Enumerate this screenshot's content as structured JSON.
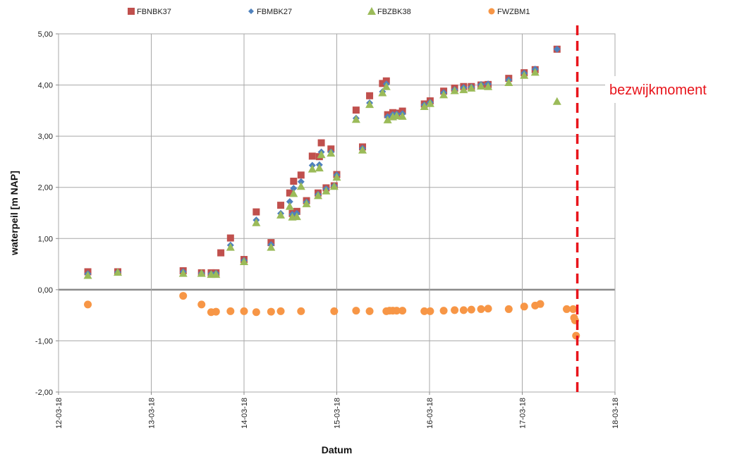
{
  "chart_data": {
    "type": "scatter",
    "xlabel": "Datum",
    "ylabel": "waterpeil [m NAP]",
    "xlim": [
      "12-03-18",
      "18-03-18"
    ],
    "ylim": [
      -2.0,
      5.0
    ],
    "x_ticks": [
      "12-03-18",
      "13-03-18",
      "14-03-18",
      "15-03-18",
      "16-03-18",
      "17-03-18",
      "18-03-18"
    ],
    "y_ticks": [
      "5,00",
      "4,00",
      "3,00",
      "2,00",
      "1,00",
      "0,00",
      "-1,00",
      "-2,00"
    ],
    "grid": true,
    "legend_position": "top",
    "colors": {
      "FBNBK37": "#c0504d",
      "FBMBK27": "#4f81bd",
      "FBZBK38": "#9bbb59",
      "FWZBM1": "#f79646",
      "annotation": "#e8141b"
    },
    "annotation": {
      "text": "bezwijkmoment",
      "x": "17-03-18 14:15"
    },
    "series": [
      {
        "name": "FBNBK37",
        "marker": "square",
        "points": [
          [
            "12-03-18 07:35",
            0.35
          ],
          [
            "12-03-18 15:20",
            0.35
          ],
          [
            "13-03-18 08:15",
            0.37
          ],
          [
            "13-03-18 13:00",
            0.33
          ],
          [
            "13-03-18 15:30",
            0.33
          ],
          [
            "13-03-18 16:45",
            0.33
          ],
          [
            "13-03-18 18:00",
            0.72
          ],
          [
            "13-03-18 20:30",
            1.01
          ],
          [
            "13-03-18 24:00",
            0.59
          ],
          [
            "14-03-18 03:10",
            1.52
          ],
          [
            "14-03-18 07:00",
            0.92
          ],
          [
            "14-03-18 09:30",
            1.65
          ],
          [
            "14-03-18 11:50",
            1.89
          ],
          [
            "14-03-18 12:30",
            1.49
          ],
          [
            "14-03-18 12:50",
            2.12
          ],
          [
            "14-03-18 13:40",
            1.53
          ],
          [
            "14-03-18 14:45",
            2.24
          ],
          [
            "14-03-18 16:10",
            1.74
          ],
          [
            "14-03-18 17:40",
            2.61
          ],
          [
            "14-03-18 19:10",
            1.89
          ],
          [
            "14-03-18 19:30",
            2.6
          ],
          [
            "14-03-18 20:00",
            2.87
          ],
          [
            "14-03-18 21:15",
            1.99
          ],
          [
            "14-03-18 22:30",
            2.75
          ],
          [
            "14-03-18 23:20",
            2.03
          ],
          [
            "15-03-18 00:00",
            2.25
          ],
          [
            "15-03-18 05:00",
            3.51
          ],
          [
            "15-03-18 06:40",
            2.79
          ],
          [
            "15-03-18 08:30",
            3.79
          ],
          [
            "15-03-18 11:50",
            4.03
          ],
          [
            "15-03-18 12:50",
            4.08
          ],
          [
            "15-03-18 13:10",
            3.42
          ],
          [
            "15-03-18 14:30",
            3.46
          ],
          [
            "15-03-18 15:30",
            3.45
          ],
          [
            "15-03-18 17:00",
            3.49
          ],
          [
            "15-03-18 22:40",
            3.63
          ],
          [
            "16-03-18 00:10",
            3.69
          ],
          [
            "16-03-18 03:40",
            3.88
          ],
          [
            "16-03-18 06:30",
            3.94
          ],
          [
            "16-03-18 08:50",
            3.97
          ],
          [
            "16-03-18 10:50",
            3.97
          ],
          [
            "16-03-18 13:20",
            4.0
          ],
          [
            "16-03-18 15:10",
            4.01
          ],
          [
            "16-03-18 20:30",
            4.13
          ],
          [
            "17-03-18 00:30",
            4.24
          ],
          [
            "17-03-18 03:20",
            4.3
          ],
          [
            "17-03-18 09:00",
            4.7
          ]
        ]
      },
      {
        "name": "FBMBK27",
        "marker": "diamond",
        "points": [
          [
            "12-03-18 07:35",
            0.31
          ],
          [
            "12-03-18 15:20",
            0.34
          ],
          [
            "13-03-18 08:15",
            0.35
          ],
          [
            "13-03-18 13:00",
            0.32
          ],
          [
            "13-03-18 15:30",
            0.31
          ],
          [
            "13-03-18 16:45",
            0.32
          ],
          [
            "13-03-18 20:30",
            0.87
          ],
          [
            "13-03-18 24:00",
            0.57
          ],
          [
            "14-03-18 03:10",
            1.36
          ],
          [
            "14-03-18 07:00",
            0.88
          ],
          [
            "14-03-18 09:30",
            1.49
          ],
          [
            "14-03-18 11:50",
            1.72
          ],
          [
            "14-03-18 12:30",
            1.47
          ],
          [
            "14-03-18 12:50",
            1.98
          ],
          [
            "14-03-18 13:40",
            1.49
          ],
          [
            "14-03-18 14:45",
            2.11
          ],
          [
            "14-03-18 16:10",
            1.71
          ],
          [
            "14-03-18 17:40",
            2.43
          ],
          [
            "14-03-18 19:10",
            1.86
          ],
          [
            "14-03-18 19:30",
            2.44
          ],
          [
            "14-03-18 20:00",
            2.69
          ],
          [
            "14-03-18 21:15",
            1.97
          ],
          [
            "14-03-18 22:30",
            2.69
          ],
          [
            "14-03-18 23:20",
            2.03
          ],
          [
            "15-03-18 00:00",
            2.24
          ],
          [
            "15-03-18 05:00",
            3.35
          ],
          [
            "15-03-18 06:40",
            2.76
          ],
          [
            "15-03-18 08:30",
            3.65
          ],
          [
            "15-03-18 11:50",
            3.87
          ],
          [
            "15-03-18 12:50",
            4.02
          ],
          [
            "15-03-18 13:10",
            3.38
          ],
          [
            "15-03-18 14:30",
            3.42
          ],
          [
            "15-03-18 15:30",
            3.43
          ],
          [
            "15-03-18 17:00",
            3.44
          ],
          [
            "15-03-18 22:40",
            3.61
          ],
          [
            "16-03-18 00:10",
            3.66
          ],
          [
            "16-03-18 03:40",
            3.85
          ],
          [
            "16-03-18 06:30",
            3.91
          ],
          [
            "16-03-18 08:50",
            3.95
          ],
          [
            "16-03-18 10:50",
            3.96
          ],
          [
            "16-03-18 13:20",
            4.01
          ],
          [
            "16-03-18 15:10",
            4.02
          ],
          [
            "16-03-18 20:30",
            4.1
          ],
          [
            "17-03-18 00:30",
            4.23
          ],
          [
            "17-03-18 03:20",
            4.31
          ],
          [
            "17-03-18 09:00",
            4.7
          ]
        ]
      },
      {
        "name": "FBZBK38",
        "marker": "triangle",
        "points": [
          [
            "12-03-18 07:35",
            0.28
          ],
          [
            "12-03-18 15:20",
            0.34
          ],
          [
            "13-03-18 08:15",
            0.32
          ],
          [
            "13-03-18 13:00",
            0.32
          ],
          [
            "13-03-18 15:30",
            0.3
          ],
          [
            "13-03-18 16:45",
            0.3
          ],
          [
            "13-03-18 20:30",
            0.83
          ],
          [
            "13-03-18 24:00",
            0.55
          ],
          [
            "14-03-18 03:10",
            1.31
          ],
          [
            "14-03-18 07:00",
            0.83
          ],
          [
            "14-03-18 09:30",
            1.46
          ],
          [
            "14-03-18 11:50",
            1.63
          ],
          [
            "14-03-18 12:30",
            1.42
          ],
          [
            "14-03-18 12:50",
            1.88
          ],
          [
            "14-03-18 13:40",
            1.43
          ],
          [
            "14-03-18 14:45",
            2.02
          ],
          [
            "14-03-18 16:10",
            1.68
          ],
          [
            "14-03-18 17:40",
            2.36
          ],
          [
            "14-03-18 19:10",
            1.84
          ],
          [
            "14-03-18 19:30",
            2.38
          ],
          [
            "14-03-18 20:00",
            2.64
          ],
          [
            "14-03-18 21:15",
            1.93
          ],
          [
            "14-03-18 22:30",
            2.67
          ],
          [
            "14-03-18 23:20",
            2.02
          ],
          [
            "15-03-18 00:00",
            2.2
          ],
          [
            "15-03-18 05:00",
            3.33
          ],
          [
            "15-03-18 06:40",
            2.73
          ],
          [
            "15-03-18 08:30",
            3.62
          ],
          [
            "15-03-18 11:50",
            3.85
          ],
          [
            "15-03-18 12:50",
            3.97
          ],
          [
            "15-03-18 13:10",
            3.32
          ],
          [
            "15-03-18 14:30",
            3.38
          ],
          [
            "15-03-18 15:30",
            3.4
          ],
          [
            "15-03-18 17:00",
            3.39
          ],
          [
            "15-03-18 22:40",
            3.58
          ],
          [
            "16-03-18 00:10",
            3.64
          ],
          [
            "16-03-18 03:40",
            3.81
          ],
          [
            "16-03-18 06:30",
            3.89
          ],
          [
            "16-03-18 08:50",
            3.91
          ],
          [
            "16-03-18 10:50",
            3.94
          ],
          [
            "16-03-18 13:20",
            3.98
          ],
          [
            "16-03-18 15:10",
            3.97
          ],
          [
            "16-03-18 20:30",
            4.05
          ],
          [
            "17-03-18 00:30",
            4.19
          ],
          [
            "17-03-18 03:20",
            4.25
          ],
          [
            "17-03-18 09:00",
            3.68
          ]
        ]
      },
      {
        "name": "FWZBM1",
        "marker": "circle",
        "points": [
          [
            "12-03-18 07:35",
            -0.29
          ],
          [
            "13-03-18 08:15",
            -0.12
          ],
          [
            "13-03-18 13:00",
            -0.29
          ],
          [
            "13-03-18 15:30",
            -0.44
          ],
          [
            "13-03-18 16:45",
            -0.43
          ],
          [
            "13-03-18 20:30",
            -0.42
          ],
          [
            "13-03-18 24:00",
            -0.42
          ],
          [
            "14-03-18 03:10",
            -0.44
          ],
          [
            "14-03-18 07:00",
            -0.43
          ],
          [
            "14-03-18 09:30",
            -0.42
          ],
          [
            "14-03-18 14:45",
            -0.42
          ],
          [
            "14-03-18 23:20",
            -0.42
          ],
          [
            "15-03-18 05:00",
            -0.41
          ],
          [
            "15-03-18 08:30",
            -0.42
          ],
          [
            "15-03-18 12:50",
            -0.42
          ],
          [
            "15-03-18 13:40",
            -0.41
          ],
          [
            "15-03-18 14:30",
            -0.41
          ],
          [
            "15-03-18 15:30",
            -0.41
          ],
          [
            "15-03-18 17:00",
            -0.41
          ],
          [
            "15-03-18 22:40",
            -0.42
          ],
          [
            "16-03-18 00:10",
            -0.42
          ],
          [
            "16-03-18 03:40",
            -0.41
          ],
          [
            "16-03-18 06:30",
            -0.4
          ],
          [
            "16-03-18 08:50",
            -0.4
          ],
          [
            "16-03-18 10:50",
            -0.39
          ],
          [
            "16-03-18 13:20",
            -0.38
          ],
          [
            "16-03-18 15:10",
            -0.37
          ],
          [
            "16-03-18 20:30",
            -0.38
          ],
          [
            "17-03-18 00:30",
            -0.33
          ],
          [
            "17-03-18 03:20",
            -0.31
          ],
          [
            "17-03-18 04:40",
            -0.28
          ],
          [
            "17-03-18 11:30",
            -0.38
          ],
          [
            "17-03-18 13:10",
            -0.38
          ],
          [
            "17-03-18 13:25",
            -0.55
          ],
          [
            "17-03-18 13:40",
            -0.6
          ],
          [
            "17-03-18 13:55",
            -0.9
          ]
        ]
      }
    ]
  }
}
